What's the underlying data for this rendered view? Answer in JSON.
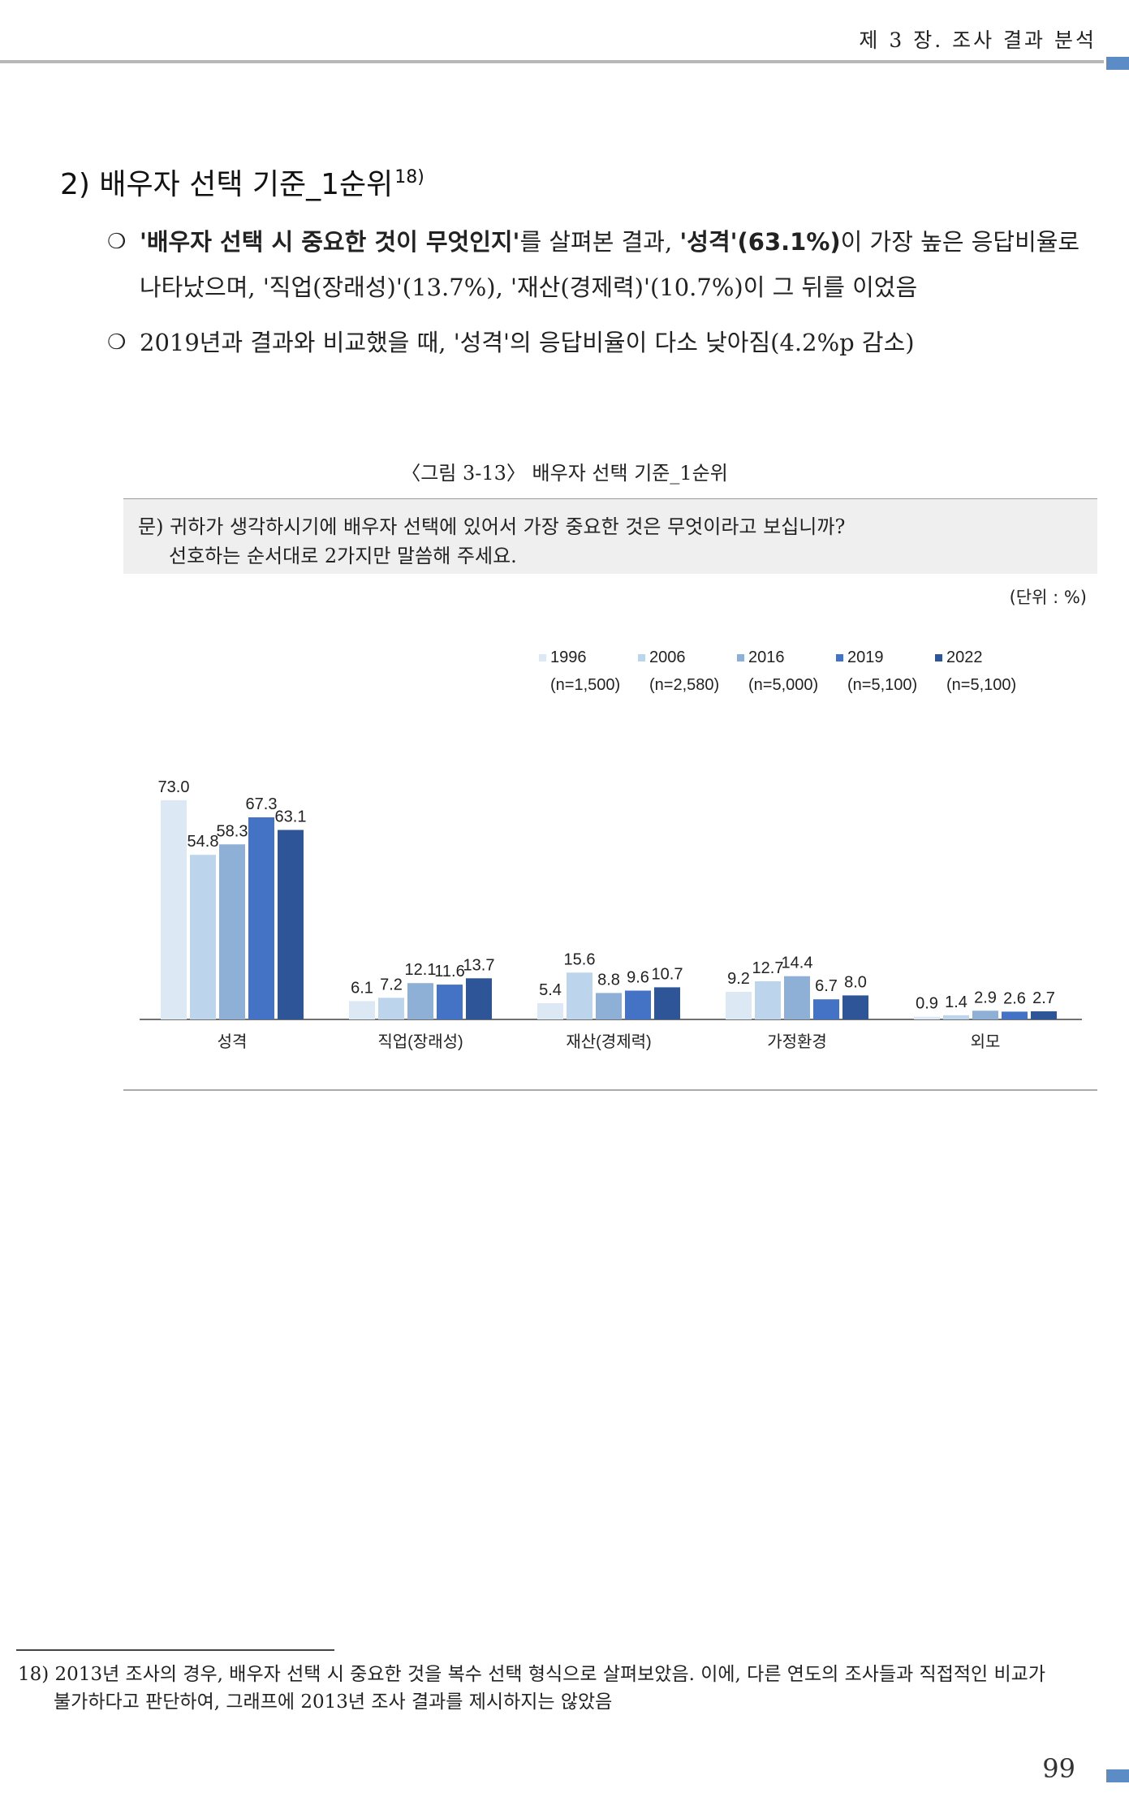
{
  "header": {
    "title": "제 3 장. 조사 결과 분석"
  },
  "section": {
    "title": "2) 배우자 선택 기준_1순위",
    "footnote_ref": "18)"
  },
  "bullets": [
    {
      "mark": "❍",
      "bold1": "'배우자 선택 시 중요한 것이 무엇인지'",
      "text1": "를 살펴본 결과, ",
      "bold2": "'성격'(63.1%)",
      "text2": "이 가장 높은 응답비율로",
      "line2": "나타났으며, '직업(장래성)'(13.7%), '재산(경제력)'(10.7%)이 그 뒤를 이었음"
    },
    {
      "mark": "❍",
      "text": "2019년과 결과와 비교했을 때, '성격'의 응답비율이 다소 낮아짐(4.2%p 감소)"
    }
  ],
  "figure": {
    "caption": "〈그림 3-13〉 배우자 선택 기준_1순위",
    "question_line1": "문) 귀하가 생각하시기에 배우자 선택에 있어서 가장 중요한 것은 무엇이라고 보십니까?",
    "question_line2": "선호하는 순서대로 2가지만 말씀해 주세요.",
    "unit": "(단위 : %)"
  },
  "chart_data": {
    "type": "bar",
    "categories": [
      "성격",
      "직업(장래성)",
      "재산(경제력)",
      "가정환경",
      "외모"
    ],
    "series": [
      {
        "name": "1996",
        "n": "(n=1,500)",
        "color": "#dde8f5",
        "values": [
          73.0,
          6.1,
          5.4,
          9.2,
          0.9
        ]
      },
      {
        "name": "2006",
        "n": "(n=2,580)",
        "color": "#bcd5ed",
        "values": [
          54.8,
          7.2,
          15.6,
          12.7,
          1.4
        ]
      },
      {
        "name": "2016",
        "n": "(n=5,000)",
        "color": "#8eafd6",
        "values": [
          58.3,
          12.1,
          8.8,
          14.4,
          2.9
        ]
      },
      {
        "name": "2019",
        "n": "(n=5,100)",
        "color": "#4472c4",
        "values": [
          67.3,
          11.6,
          9.6,
          6.7,
          2.6
        ]
      },
      {
        "name": "2022",
        "n": "(n=5,100)",
        "color": "#2e5597",
        "values": [
          63.1,
          13.7,
          10.7,
          8.0,
          2.7
        ]
      }
    ],
    "legend_position": "top-right",
    "ylim": [
      0,
      80
    ],
    "grid": false
  },
  "footnote": {
    "line1": "18) 2013년 조사의 경우, 배우자 선택 시 중요한 것을 복수 선택 형식으로 살펴보았음. 이에, 다른 연도의 조사들과 직접적인 비교가",
    "line2": "불가하다고 판단하여, 그래프에 2013년 조사 결과를 제시하지는 않았음"
  },
  "page_number": "99"
}
